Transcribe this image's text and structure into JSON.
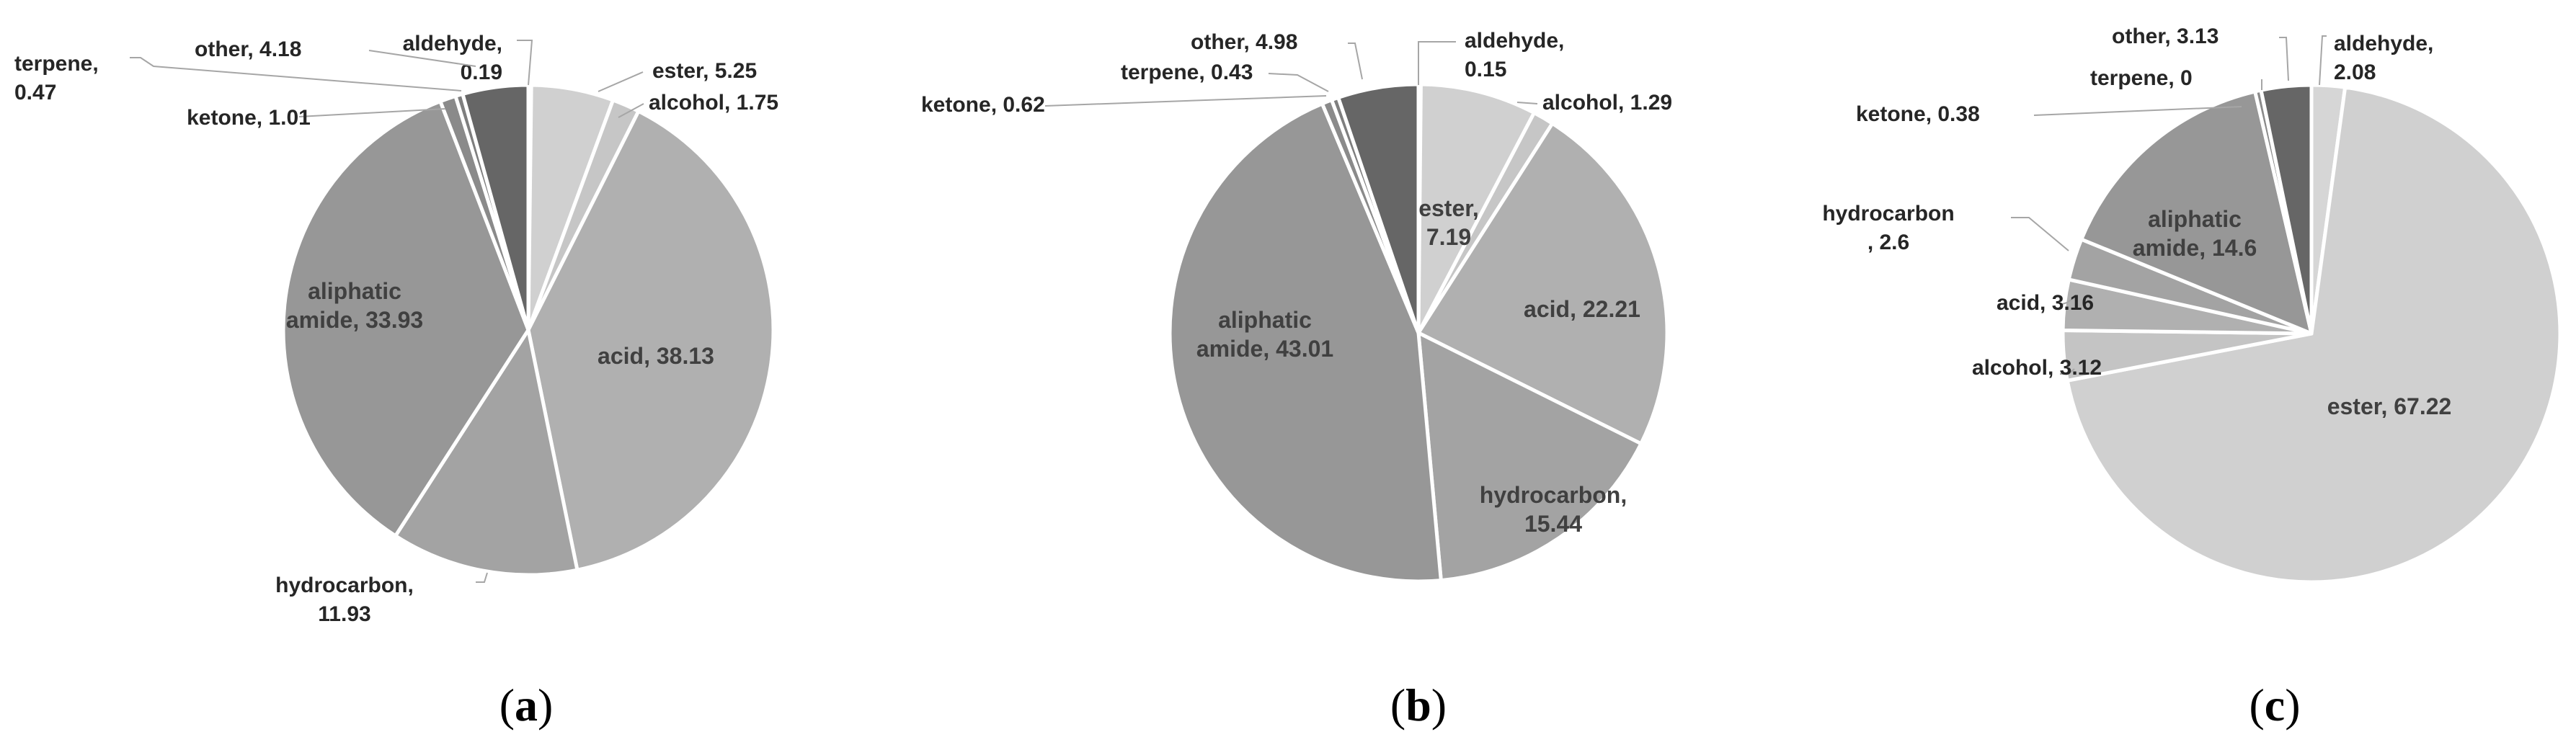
{
  "figure": {
    "panels": [
      "(a)",
      "(b)",
      "(c)"
    ]
  },
  "chart_data": [
    {
      "type": "pie",
      "panel": "(a)",
      "slices": [
        {
          "label": "aldehyde",
          "value": 0.19,
          "color": "#bfbfbf"
        },
        {
          "label": "ester",
          "value": 5.25,
          "color": "#d0d0d0"
        },
        {
          "label": "alcohol",
          "value": 1.75,
          "color": "#c6c6c6"
        },
        {
          "label": "acid",
          "value": 38.13,
          "color": "#b0b0b0"
        },
        {
          "label": "hydrocarbon",
          "value": 11.93,
          "color": "#a3a3a3"
        },
        {
          "label": "aliphatic amide",
          "value": 33.93,
          "color": "#979797"
        },
        {
          "label": "ketone",
          "value": 1.01,
          "color": "#8a8a8a"
        },
        {
          "label": "terpene",
          "value": 0.47,
          "color": "#7e7e7e"
        },
        {
          "label": "other",
          "value": 4.18,
          "color": "#666666"
        }
      ],
      "labels_text": {
        "aldehyde": [
          "aldehyde,",
          "0.19"
        ],
        "ester": [
          "ester, 5.25"
        ],
        "alcohol": [
          "alcohol, 1.75"
        ],
        "acid": [
          "acid, 38.13"
        ],
        "hydrocarbon": [
          "hydrocarbon,",
          "11.93"
        ],
        "aliphatic amide": [
          "aliphatic",
          "amide, 33.93"
        ],
        "ketone": [
          "ketone, 1.01"
        ],
        "terpene": [
          "terpene,",
          "0.47"
        ],
        "other": [
          "other, 4.18"
        ]
      }
    },
    {
      "type": "pie",
      "panel": "(b)",
      "slices": [
        {
          "label": "aldehyde",
          "value": 0.15,
          "color": "#bfbfbf"
        },
        {
          "label": "ester",
          "value": 7.19,
          "color": "#d0d0d0"
        },
        {
          "label": "alcohol",
          "value": 1.29,
          "color": "#c6c6c6"
        },
        {
          "label": "acid",
          "value": 22.21,
          "color": "#b0b0b0"
        },
        {
          "label": "hydrocarbon",
          "value": 15.44,
          "color": "#a3a3a3"
        },
        {
          "label": "aliphatic amide",
          "value": 43.01,
          "color": "#979797"
        },
        {
          "label": "ketone",
          "value": 0.62,
          "color": "#8a8a8a"
        },
        {
          "label": "terpene",
          "value": 0.43,
          "color": "#7e7e7e"
        },
        {
          "label": "other",
          "value": 4.98,
          "color": "#666666"
        }
      ],
      "labels_text": {
        "aldehyde": [
          "aldehyde,",
          "0.15"
        ],
        "ester": [
          "ester,",
          "7.19"
        ],
        "alcohol": [
          "alcohol, 1.29"
        ],
        "acid": [
          "acid, 22.21"
        ],
        "hydrocarbon": [
          "hydrocarbon,",
          "15.44"
        ],
        "aliphatic amide": [
          "aliphatic",
          "amide, 43.01"
        ],
        "ketone": [
          "ketone, 0.62"
        ],
        "terpene": [
          "terpene, 0.43"
        ],
        "other": [
          "other, 4.98"
        ]
      }
    },
    {
      "type": "pie",
      "panel": "(c)",
      "slices": [
        {
          "label": "aldehyde",
          "value": 2.08,
          "color": "#d6d6d6"
        },
        {
          "label": "ester",
          "value": 67.22,
          "color": "#d0d0d0"
        },
        {
          "label": "alcohol",
          "value": 3.12,
          "color": "#c4c4c4"
        },
        {
          "label": "acid",
          "value": 3.16,
          "color": "#b0b0b0"
        },
        {
          "label": "hydrocarbon",
          "value": 2.6,
          "color": "#a3a3a3"
        },
        {
          "label": "aliphatic amide",
          "value": 14.6,
          "color": "#979797"
        },
        {
          "label": "ketone",
          "value": 0.38,
          "color": "#8a8a8a"
        },
        {
          "label": "terpene",
          "value": 0,
          "color": "#7e7e7e"
        },
        {
          "label": "other",
          "value": 3.13,
          "color": "#666666"
        }
      ],
      "labels_text": {
        "aldehyde": [
          "aldehyde,",
          "2.08"
        ],
        "ester": [
          "ester, 67.22"
        ],
        "alcohol": [
          "alcohol, 3.12"
        ],
        "acid": [
          "acid, 3.16"
        ],
        "hydrocarbon": [
          "hydrocarbon",
          ", 2.6"
        ],
        "aliphatic amide": [
          "aliphatic",
          "amide, 14.6"
        ],
        "ketone": [
          "ketone, 0.38"
        ],
        "terpene": [
          "terpene, 0"
        ],
        "other": [
          "other, 3.13"
        ]
      }
    }
  ]
}
